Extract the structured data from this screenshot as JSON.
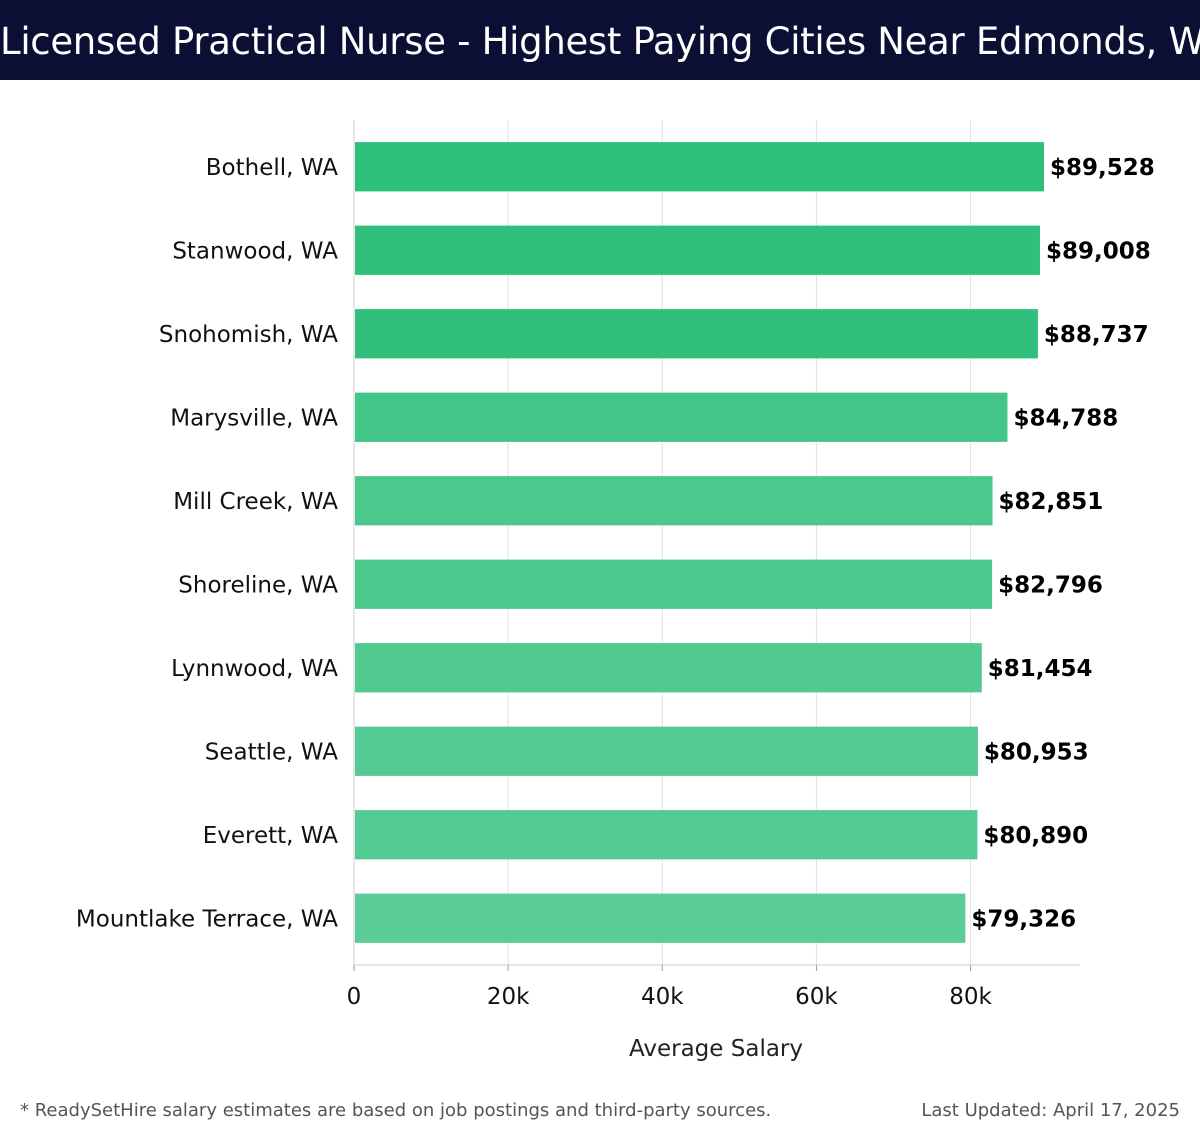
{
  "header": {
    "title": "Licensed Practical Nurse - Highest Paying Cities Near Edmonds, WA"
  },
  "chart_data": {
    "type": "bar",
    "orientation": "horizontal",
    "title": "Licensed Practical Nurse - Highest Paying Cities Near Edmonds, WA",
    "xlabel": "Average Salary",
    "ylabel": "",
    "categories": [
      "Bothell, WA",
      "Stanwood, WA",
      "Snohomish, WA",
      "Marysville, WA",
      "Mill Creek, WA",
      "Shoreline, WA",
      "Lynnwood, WA",
      "Seattle, WA",
      "Everett, WA",
      "Mountlake Terrace, WA"
    ],
    "values": [
      89528,
      89008,
      88737,
      84788,
      82851,
      82796,
      81454,
      80953,
      80890,
      79326
    ],
    "value_labels": [
      "$89,528",
      "$89,008",
      "$88,737",
      "$84,788",
      "$82,851",
      "$82,796",
      "$81,454",
      "$80,953",
      "$80,890",
      "$79,326"
    ],
    "xticks": [
      0,
      20000,
      40000,
      60000,
      80000
    ],
    "xtick_labels": [
      "0",
      "20k",
      "40k",
      "60k",
      "80k"
    ],
    "xlim": [
      0,
      94200
    ],
    "grid": true,
    "legend": "none",
    "colors": {
      "bar_high": "#2ebf7a",
      "bar_low": "#5acd96",
      "grid": "#e2e2e2",
      "axis": "#cccccc",
      "text": "#111111"
    }
  },
  "footer": {
    "note": "* ReadySetHire salary estimates are based on job postings and third-party sources.",
    "updated": "Last Updated: April 17, 2025"
  }
}
